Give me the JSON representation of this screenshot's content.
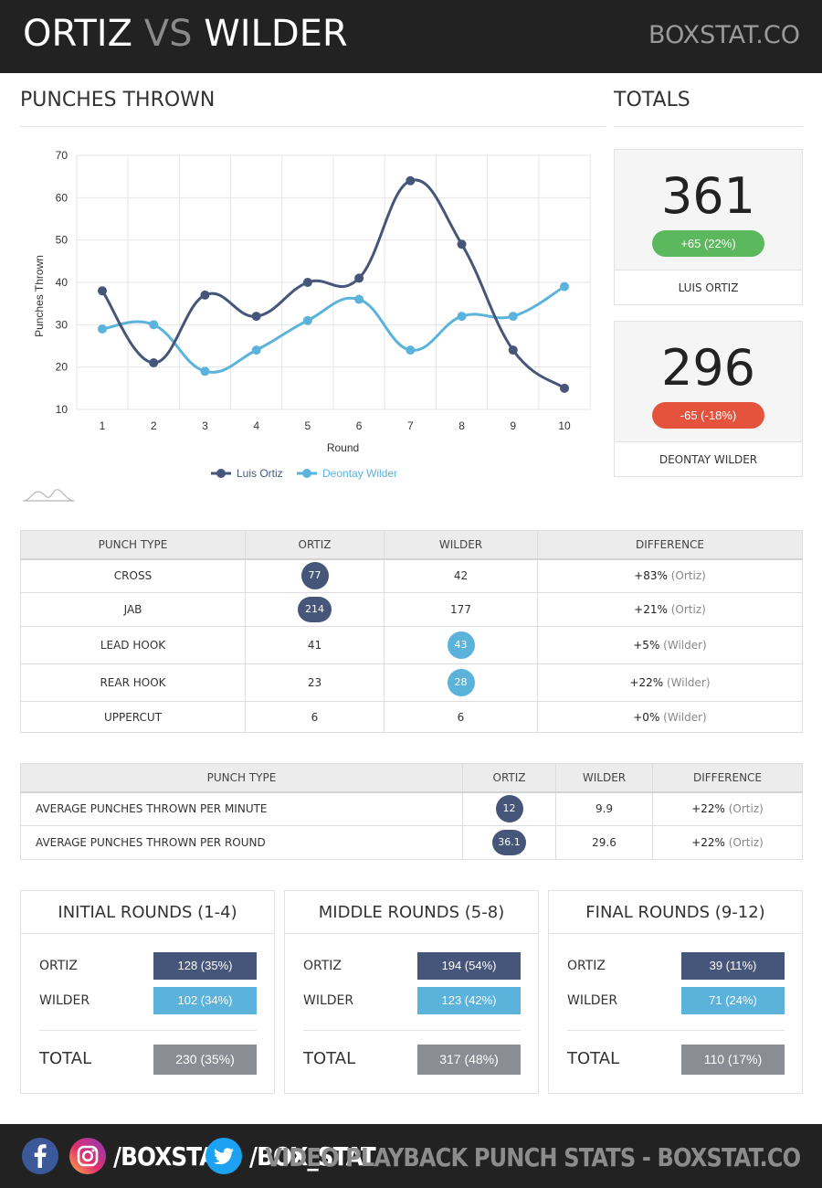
{
  "header": {
    "name_left": "ORTIZ",
    "vs": "VS",
    "name_right": "WILDER",
    "brand": "BOXSTAT.CO"
  },
  "sections": {
    "punches_thrown": "PUNCHES THROWN",
    "totals": "TOTALS"
  },
  "chart_data": {
    "type": "line",
    "x": [
      1,
      2,
      3,
      4,
      5,
      6,
      7,
      8,
      9,
      10
    ],
    "series": [
      {
        "name": "Luis Ortiz",
        "values": [
          38,
          21,
          37,
          32,
          40,
          41,
          64,
          49,
          24,
          15
        ],
        "color": "#46567a"
      },
      {
        "name": "Deontay Wilder",
        "values": [
          29,
          30,
          19,
          24,
          31,
          36,
          24,
          32,
          32,
          39
        ],
        "color": "#5bb3dc"
      }
    ],
    "title": "",
    "xlabel": "Round",
    "ylabel": "Punches Thrown",
    "ylim": [
      10,
      70
    ],
    "yticks": [
      10,
      20,
      30,
      40,
      50,
      60,
      70
    ],
    "grid": true,
    "legend": "bottom-center"
  },
  "totals": [
    {
      "value": "361",
      "change": "+65 (22%)",
      "change_color": "#5cb85c",
      "name": "LUIS ORTIZ"
    },
    {
      "value": "296",
      "change": "-65 (-18%)",
      "change_color": "#e5533d",
      "name": "DEONTAY WILDER"
    }
  ],
  "punch_table": {
    "headers": [
      "PUNCH TYPE",
      "ORTIZ",
      "WILDER",
      "DIFFERENCE"
    ],
    "rows": [
      {
        "type": "CROSS",
        "ortiz": "77",
        "wilder": "42",
        "pct": "+83%",
        "who": "(Ortiz)"
      },
      {
        "type": "JAB",
        "ortiz": "214",
        "wilder": "177",
        "pct": "+21%",
        "who": "(Ortiz)"
      },
      {
        "type": "LEAD HOOK",
        "ortiz": "41",
        "wilder": "43",
        "pct": "+5%",
        "who": "(Wilder)"
      },
      {
        "type": "REAR HOOK",
        "ortiz": "23",
        "wilder": "28",
        "pct": "+22%",
        "who": "(Wilder)"
      },
      {
        "type": "UPPERCUT",
        "ortiz": "6",
        "wilder": "6",
        "pct": "+0%",
        "who": "(Wilder)"
      }
    ]
  },
  "avg_table": {
    "headers": [
      "PUNCH TYPE",
      "ORTIZ",
      "WILDER",
      "DIFFERENCE"
    ],
    "rows": [
      {
        "type": "AVERAGE PUNCHES THROWN PER MINUTE",
        "ortiz": "12",
        "wilder": "9.9",
        "pct": "+22%",
        "who": "(Ortiz)"
      },
      {
        "type": "AVERAGE PUNCHES THROWN PER ROUND",
        "ortiz": "36.1",
        "wilder": "29.6",
        "pct": "+22%",
        "who": "(Ortiz)"
      }
    ]
  },
  "phases": [
    {
      "title": "INITIAL ROUNDS (1-4)",
      "ortiz_label": "ORTIZ",
      "ortiz": "128 (35%)",
      "wilder_label": "WILDER",
      "wilder": "102 (34%)",
      "total_label": "TOTAL",
      "total": "230 (35%)"
    },
    {
      "title": "MIDDLE ROUNDS (5-8)",
      "ortiz_label": "ORTIZ",
      "ortiz": "194 (54%)",
      "wilder_label": "WILDER",
      "wilder": "123 (42%)",
      "total_label": "TOTAL",
      "total": "317 (48%)"
    },
    {
      "title": "FINAL ROUNDS (9-12)",
      "ortiz_label": "ORTIZ",
      "ortiz": "39 (11%)",
      "wilder_label": "WILDER",
      "wilder": "71 (24%)",
      "total_label": "TOTAL",
      "total": "110 (17%)"
    }
  ],
  "colors": {
    "ortiz": "#46567a",
    "wilder": "#5bb3dc",
    "total": "#8a8d93"
  },
  "footer": {
    "icons": [
      "facebook-icon",
      "instagram-icon",
      "twitter-icon"
    ],
    "instagram_handle": "/BOXSTAT",
    "twitter_handle": "/BOX_STAT",
    "tagline": "VIDEO PLAYBACK PUNCH STATS - BOXSTAT.CO"
  }
}
